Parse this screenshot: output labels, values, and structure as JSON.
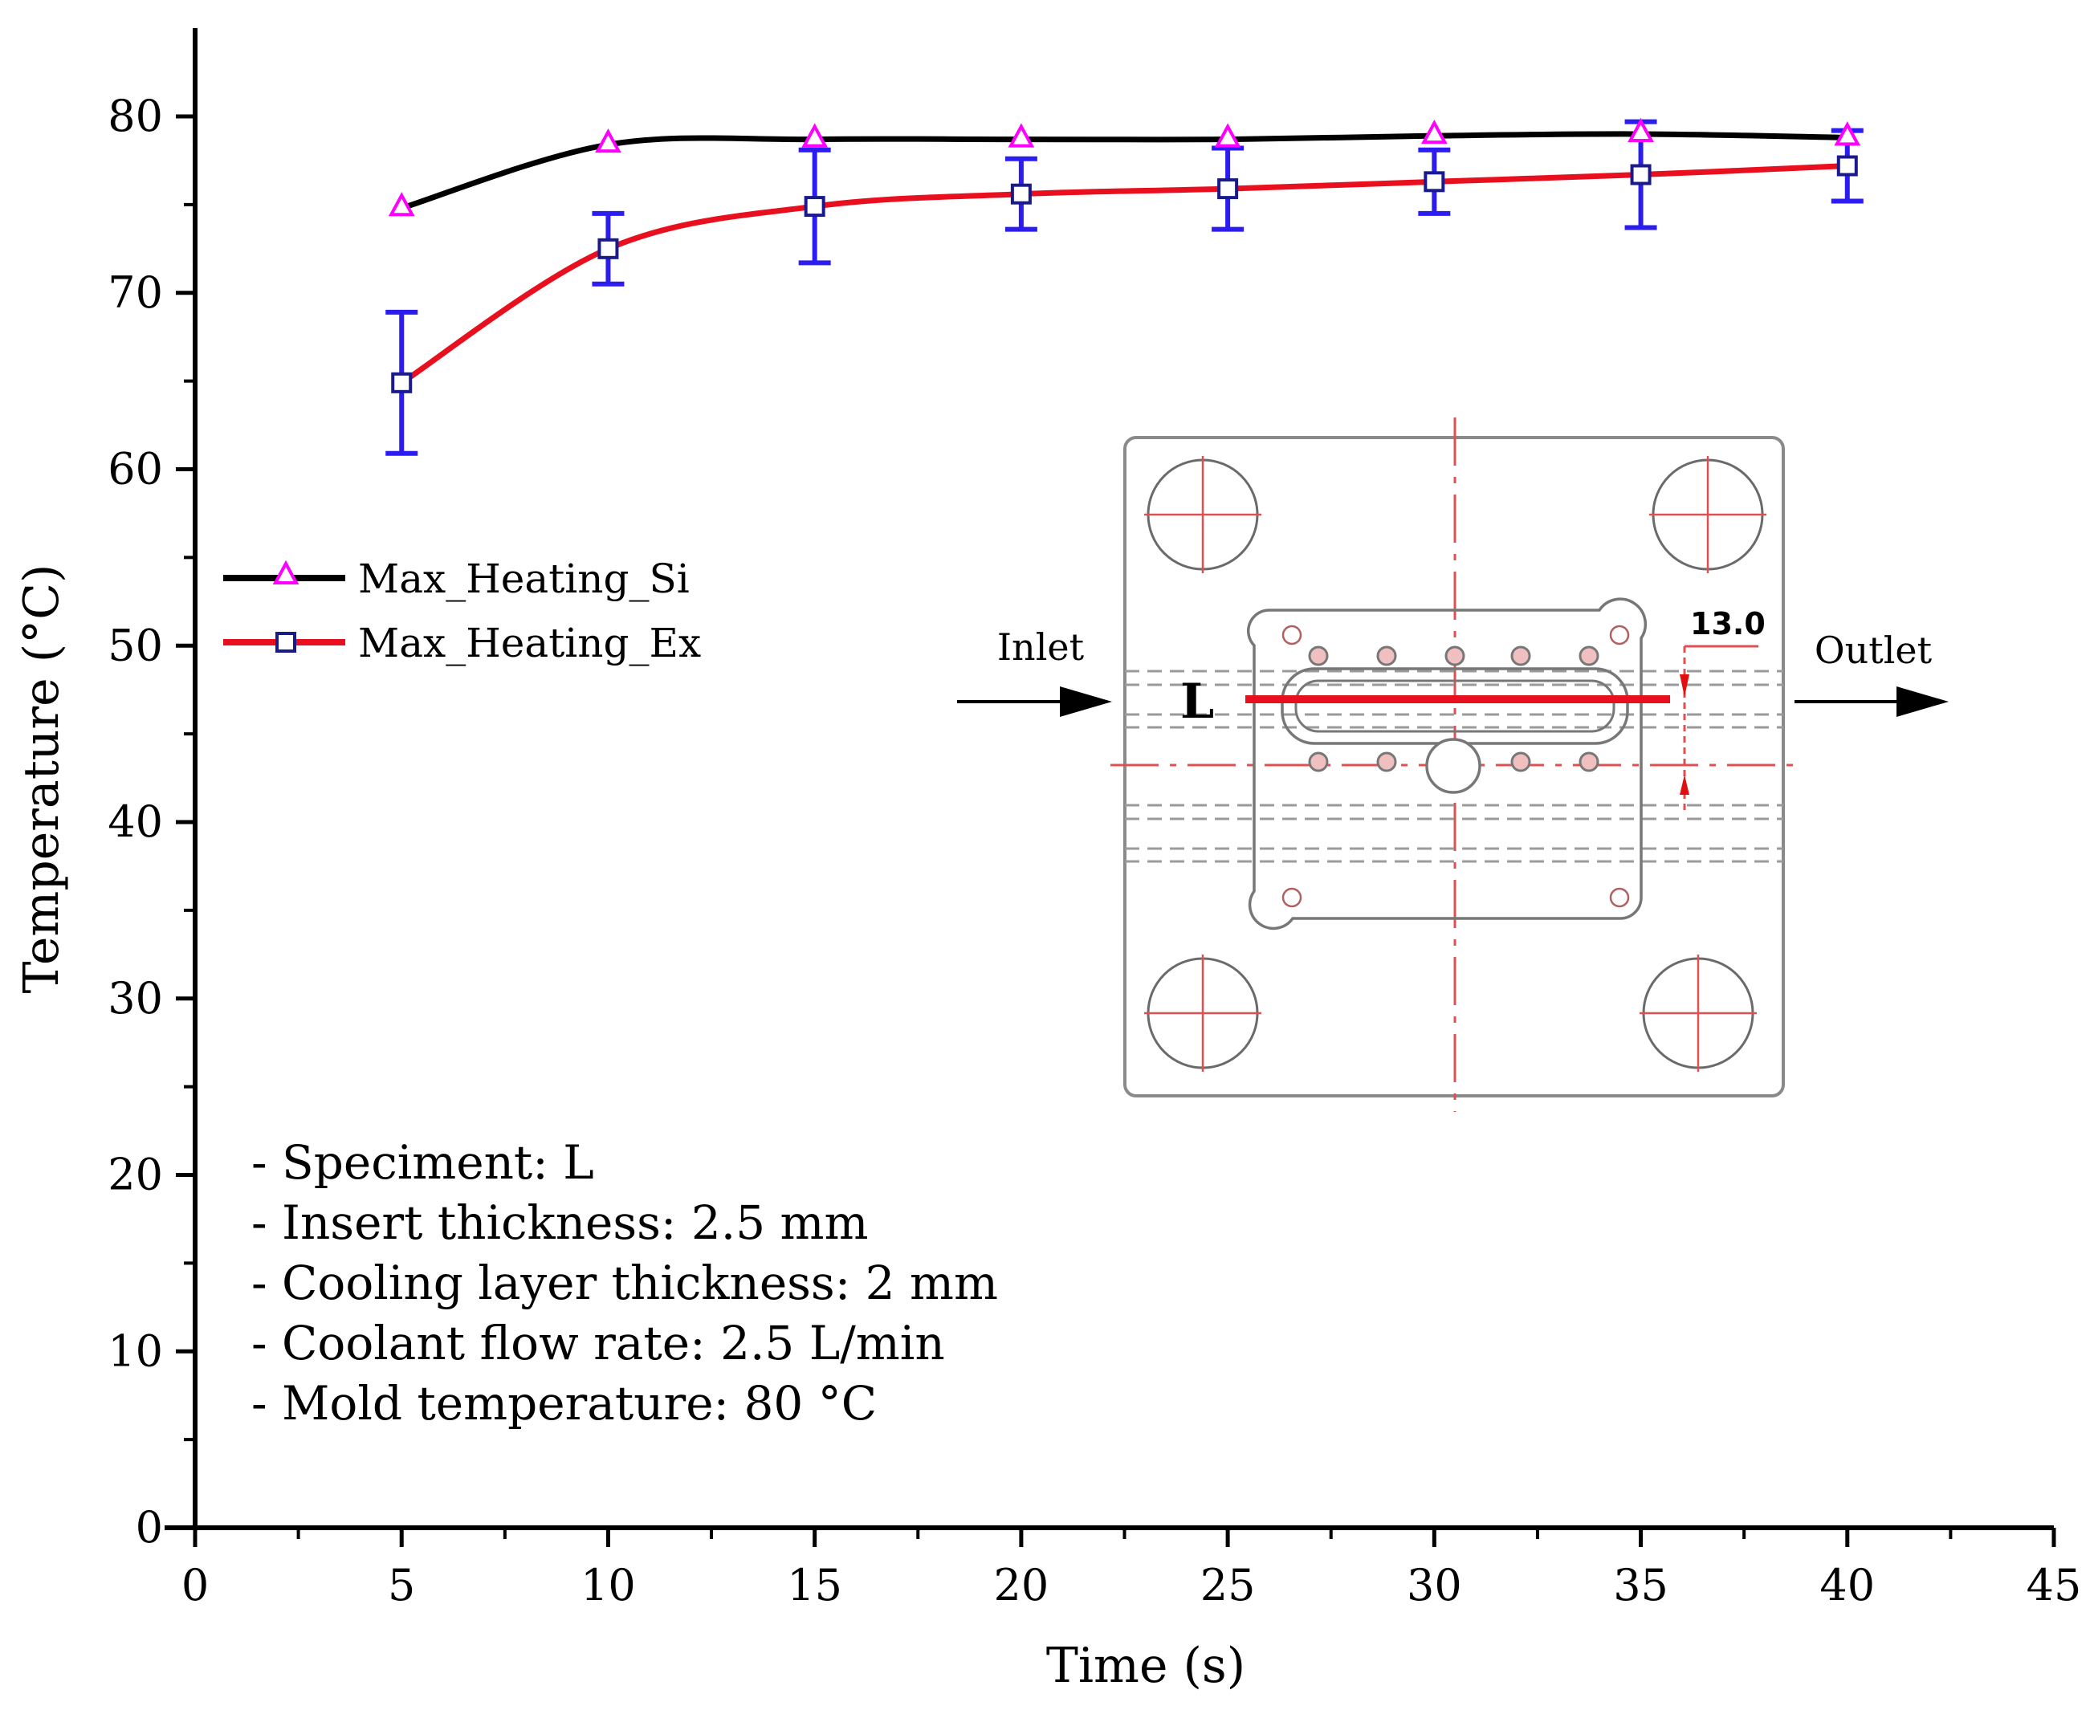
{
  "chart_data": {
    "type": "line",
    "title": "",
    "xlabel": "Time (s)",
    "ylabel": "Temperature (°C)",
    "xlim": [
      0,
      45
    ],
    "ylim": [
      0,
      85
    ],
    "x_ticks": [
      0,
      5,
      10,
      15,
      20,
      25,
      30,
      35,
      40,
      45
    ],
    "y_ticks": [
      0,
      10,
      20,
      30,
      40,
      50,
      60,
      70,
      80
    ],
    "x": [
      5,
      10,
      15,
      20,
      25,
      30,
      35,
      40
    ],
    "series": [
      {
        "name": "Max_Heating_Si",
        "values": [
          74.8,
          78.4,
          78.7,
          78.7,
          78.7,
          78.9,
          79.0,
          78.8
        ],
        "line_color": "#000000",
        "marker": "triangle",
        "marker_color": "#ff00ff"
      },
      {
        "name": "Max_Heating_Ex",
        "values": [
          64.9,
          72.5,
          74.9,
          75.6,
          75.9,
          76.3,
          76.7,
          77.2
        ],
        "errors": [
          4.0,
          2.0,
          3.2,
          2.0,
          2.3,
          1.8,
          3.0,
          2.0
        ],
        "line_color": "#e8101e",
        "marker": "square",
        "marker_color": "#1a1a8c",
        "error_color": "#2b1cf0"
      }
    ],
    "legend_position": "middle-left",
    "notes": [
      "- Speciment: L",
      "- Insert thickness: 2.5 mm",
      "- Cooling layer thickness: 2  mm",
      "- Coolant flow rate: 2.5 L/min",
      "- Mold temperature: 80 °C"
    ],
    "inset": {
      "inlet_label": "Inlet",
      "outlet_label": "Outlet",
      "specimen_label": "L",
      "dimension_label": "13.0"
    }
  }
}
